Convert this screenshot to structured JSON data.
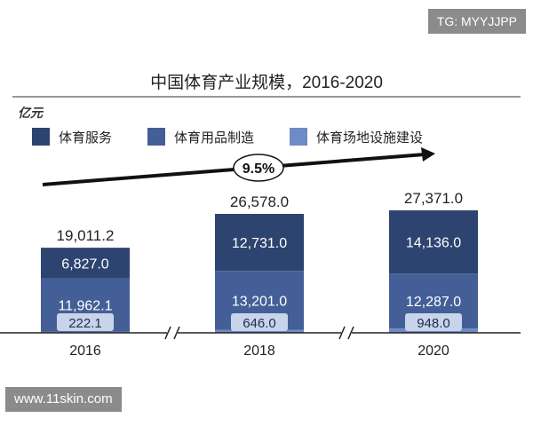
{
  "watermarks": {
    "corner_tag": "TG: MYYJJPP",
    "site_tag": "www.11skin.com"
  },
  "chart_data": {
    "type": "bar",
    "stacked": true,
    "title": "中国体育产业规模，2016-2020",
    "unit_label": "亿元",
    "categories": [
      "2016",
      "2018",
      "2020"
    ],
    "series": [
      {
        "name": "体育服务",
        "color": "#2e4470",
        "values": [
          6827.0,
          12731.0,
          14136.0
        ],
        "labels": [
          "6,827.0",
          "12,731.0",
          "14,136.0"
        ]
      },
      {
        "name": "体育用品制造",
        "color": "#445f97",
        "values": [
          11962.1,
          13201.0,
          12287.0
        ],
        "labels": [
          "11,962.1",
          "13,201.0",
          "12,287.0"
        ]
      },
      {
        "name": "体育场地设施建设",
        "color": "#6d8bc4",
        "values": [
          222.1,
          646.0,
          948.0
        ],
        "labels": [
          "222.1",
          "646.0",
          "948.0"
        ]
      }
    ],
    "totals": [
      "19,011.2",
      "26,578.0",
      "27,371.0"
    ],
    "cagr_label": "9.5%",
    "legend_position": "top-left",
    "axis_break": true,
    "grid": false
  }
}
